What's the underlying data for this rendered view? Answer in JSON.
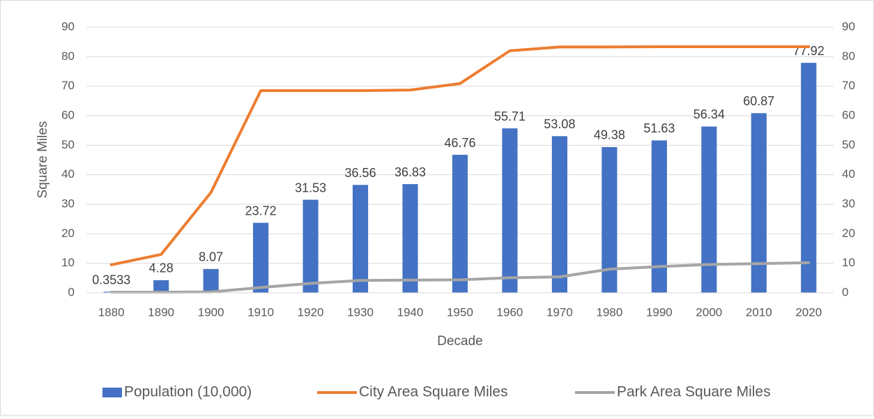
{
  "chart_data": {
    "type": "bar",
    "categories": [
      "1880",
      "1890",
      "1900",
      "1910",
      "1920",
      "1930",
      "1940",
      "1950",
      "1960",
      "1970",
      "1980",
      "1990",
      "2000",
      "2010",
      "2020"
    ],
    "series": [
      {
        "name": "Population (10,000)",
        "type": "bar",
        "color": "#4472c4",
        "show_labels": true,
        "values": [
          0.3533,
          4.28,
          8.07,
          23.72,
          31.53,
          36.56,
          36.83,
          46.76,
          55.71,
          53.08,
          49.38,
          51.63,
          56.34,
          60.87,
          77.92
        ]
      },
      {
        "name": "City Area Square Miles",
        "type": "line",
        "axis": "y2",
        "color": "#ed7d31",
        "values": [
          9.5,
          13,
          34,
          68.5,
          68.5,
          68.5,
          68.7,
          70.9,
          82,
          83.3,
          83.3,
          83.4,
          83.4,
          83.4,
          83.4
        ]
      },
      {
        "name": "Park Area Square Miles",
        "type": "line",
        "axis": "y2",
        "color": "#a5a5a5",
        "values": [
          0.2,
          0.2,
          0.3,
          1.8,
          3.2,
          4.2,
          4.3,
          4.4,
          5.1,
          5.4,
          8.0,
          8.9,
          9.6,
          9.9,
          10.2
        ]
      }
    ],
    "ylabel": "Square Miles",
    "xlabel": "Decade",
    "ylim": [
      0,
      90
    ],
    "yticks": [
      0,
      10,
      20,
      30,
      40,
      50,
      60,
      70,
      80,
      90
    ],
    "y2lim": [
      0,
      90
    ],
    "y2ticks": [
      0,
      10,
      20,
      30,
      40,
      50,
      60,
      70,
      80,
      90
    ],
    "grid": true,
    "legend": "bottom"
  }
}
